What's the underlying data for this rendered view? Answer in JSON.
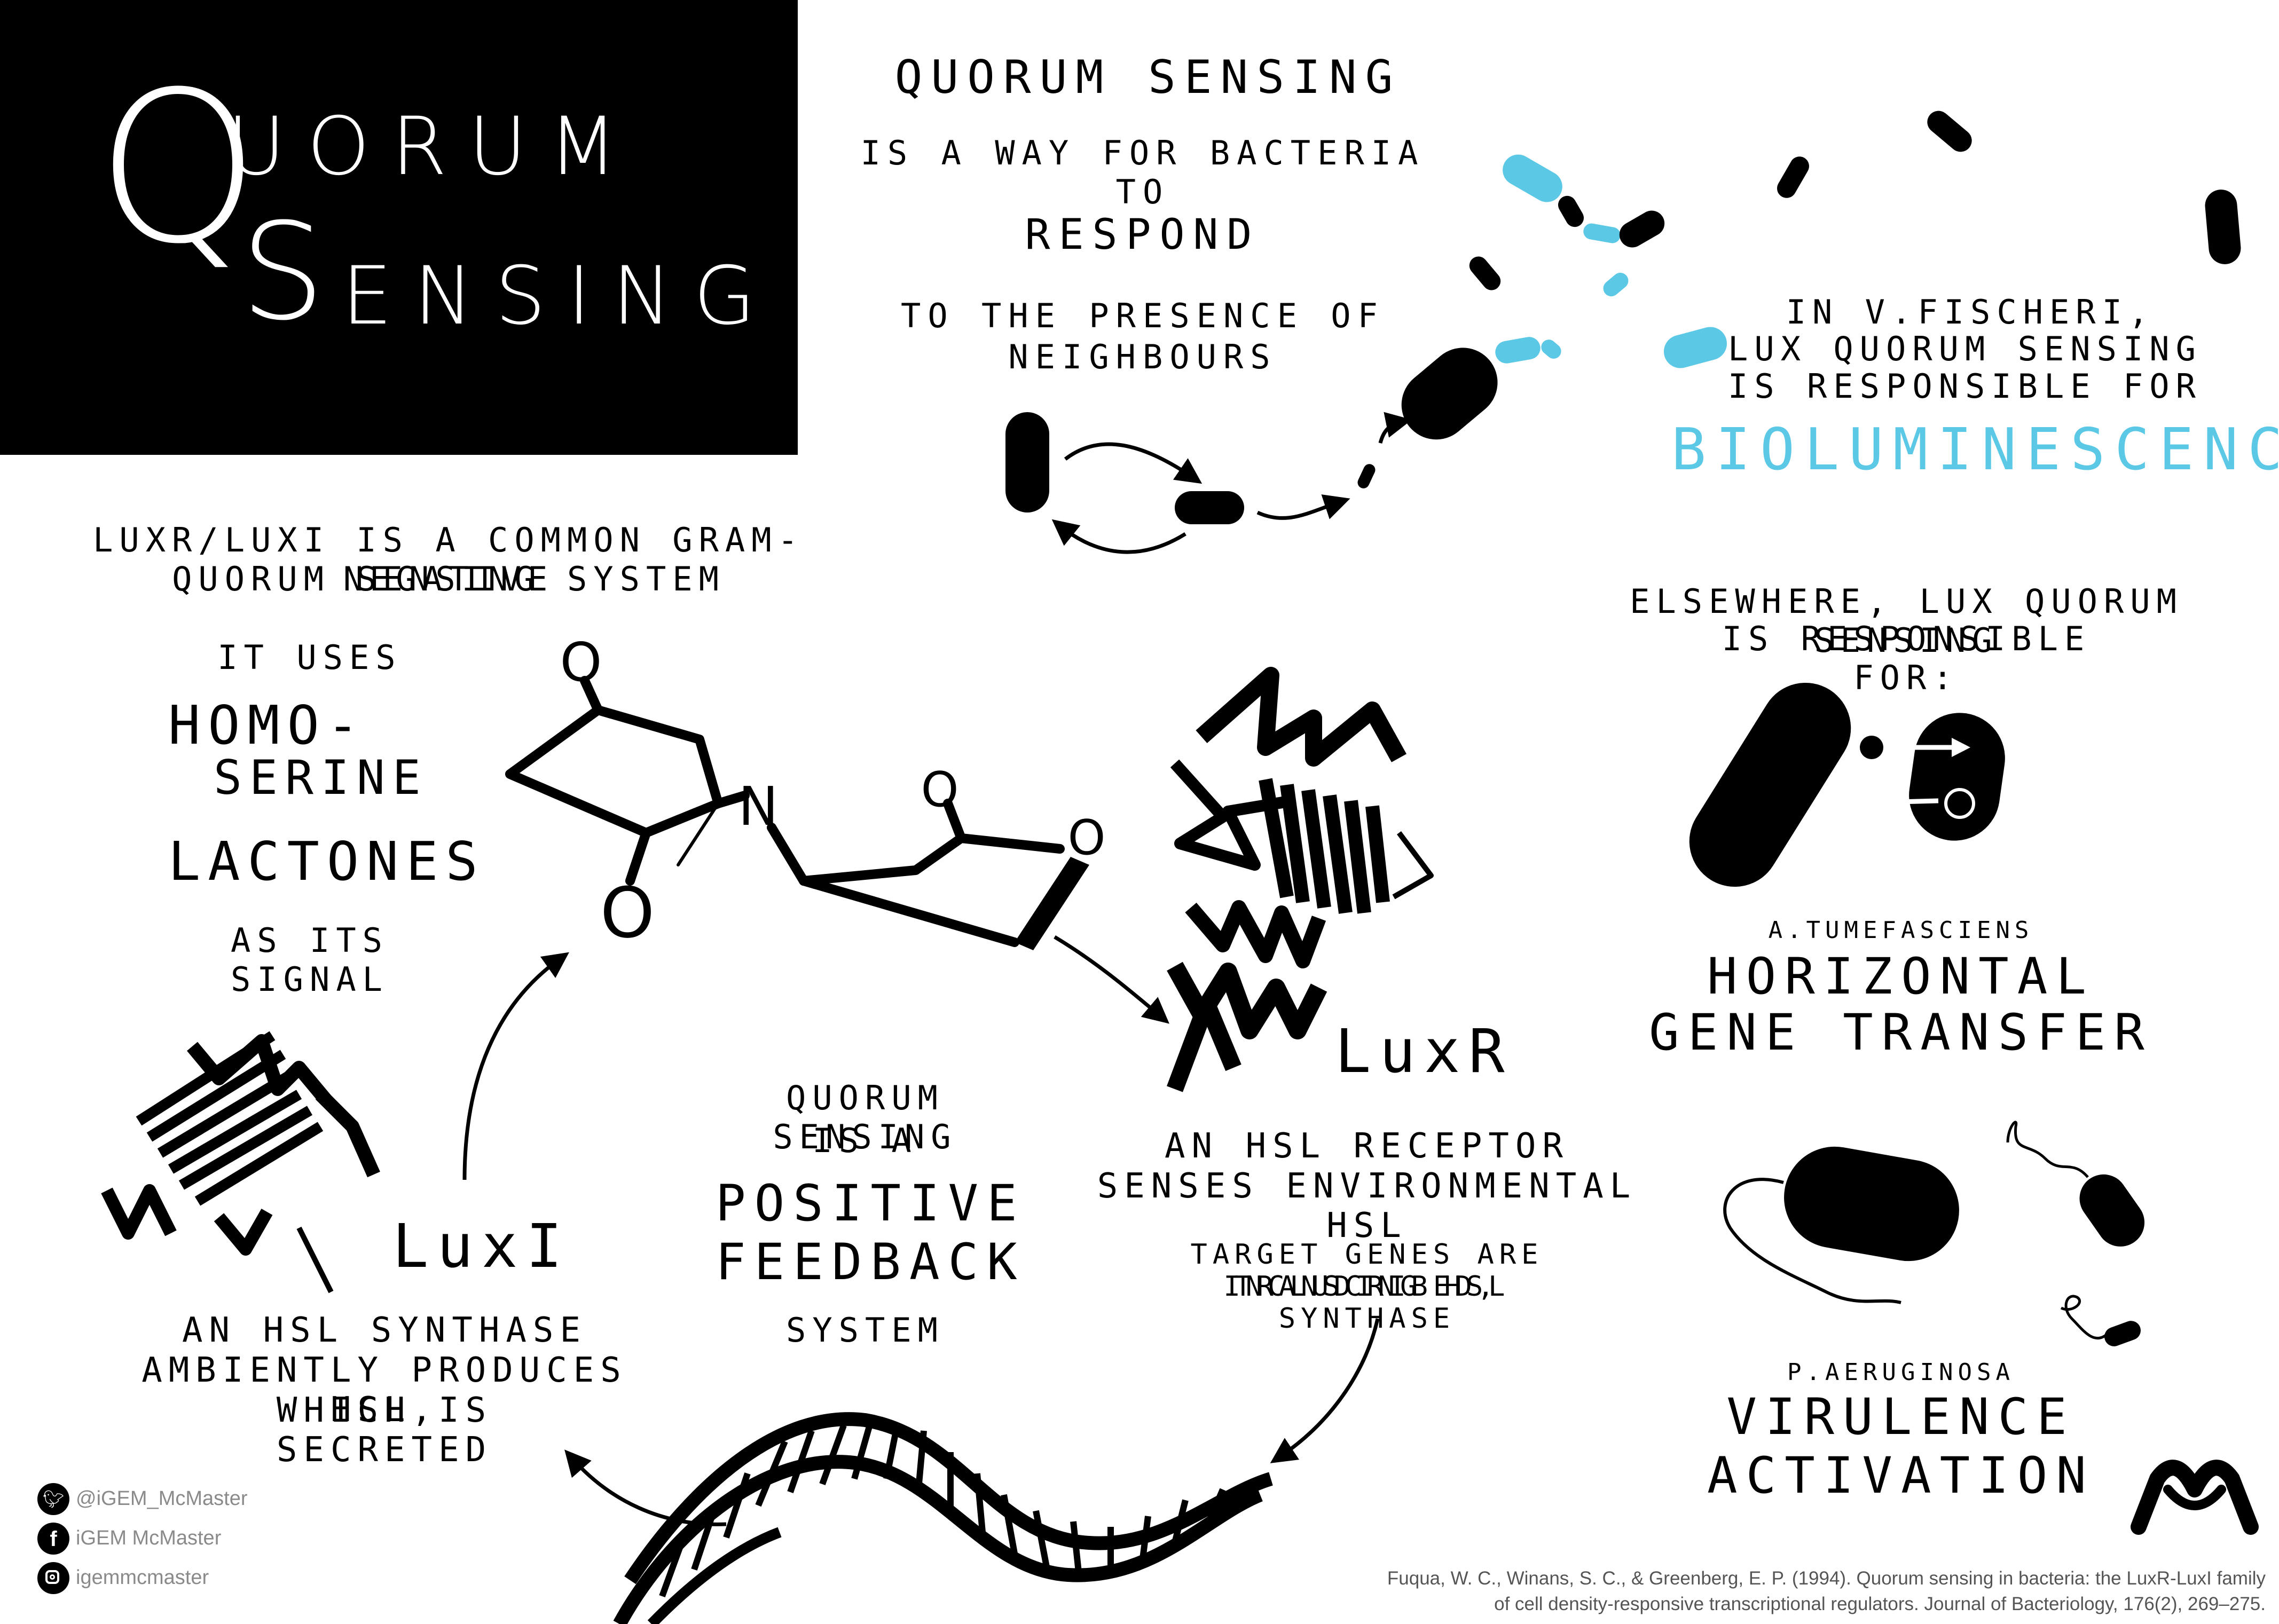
{
  "title": {
    "line1_initial": "Q",
    "line1_rest": "UORUM",
    "line2_initial": "S",
    "line2_rest": "ENSING"
  },
  "intro": {
    "line1": "Quorum sensing",
    "line2": "is a way for bacteria to",
    "line3": "respond",
    "line4": "to the presence of",
    "line5": "neighbours"
  },
  "vfischeri": {
    "line1": "In V.fischeri,",
    "line2": "Lux quorum sensing",
    "line3": "is responsible for",
    "highlight": "Bioluminescence"
  },
  "luxr_luxi": {
    "line1": "LuxR/LuxI is a common gram-negative",
    "line2": "quorum sensing system"
  },
  "signal": {
    "line1": "It uses",
    "homo": "Homo-",
    "serine": "Serine",
    "lactones": "Lactones",
    "line_last": "As its signal"
  },
  "molecule": {
    "o_top": "O",
    "n": "N",
    "o_bottom": "O",
    "o_ring_top": "O",
    "o_ring": "O"
  },
  "luxr": {
    "label": "LuxR",
    "desc1": "An HSL receptor",
    "desc2": "senses environmental HSL",
    "desc3": "target genes are transcribed,",
    "desc4": "including HSL synthase"
  },
  "luxi": {
    "label": "LuxI",
    "desc1": "An HSL synthase",
    "desc2": "ambiently produces HSL,",
    "desc3": "which is secreted"
  },
  "feedback": {
    "line1": "Quorum Sensing",
    "line2": "is a",
    "line3": "Positive",
    "line4": "feedback",
    "line5": "System"
  },
  "elsewhere": {
    "line1": "Elsewhere, Lux quorum sensing",
    "line2": "is responsible for:"
  },
  "atumefaciens": {
    "species": "A.tumefasciens",
    "line1": "Horizontal",
    "line2": "Gene Transfer"
  },
  "paeruginosa": {
    "species": "P.aeruginosa",
    "line1": "Virulence",
    "line2": "Activation"
  },
  "social": {
    "twitter": "@iGEM_McMaster",
    "facebook": "iGEM McMaster",
    "instagram": "igemmcmaster"
  },
  "citation": {
    "line1": "Fuqua, W. C., Winans, S. C., & Greenberg, E. P. (1994). Quorum sensing in bacteria: the LuxR-LuxI family",
    "line2": "of cell density-responsive transcriptional regulators. Journal of Bacteriology, 176(2), 269–275."
  },
  "icons": [
    "twitter-icon",
    "facebook-icon",
    "instagram-icon",
    "mcmaster-logo-icon"
  ],
  "colors": {
    "accent": "#5bc8e6",
    "ink": "#000000",
    "background": "#ffffff"
  }
}
